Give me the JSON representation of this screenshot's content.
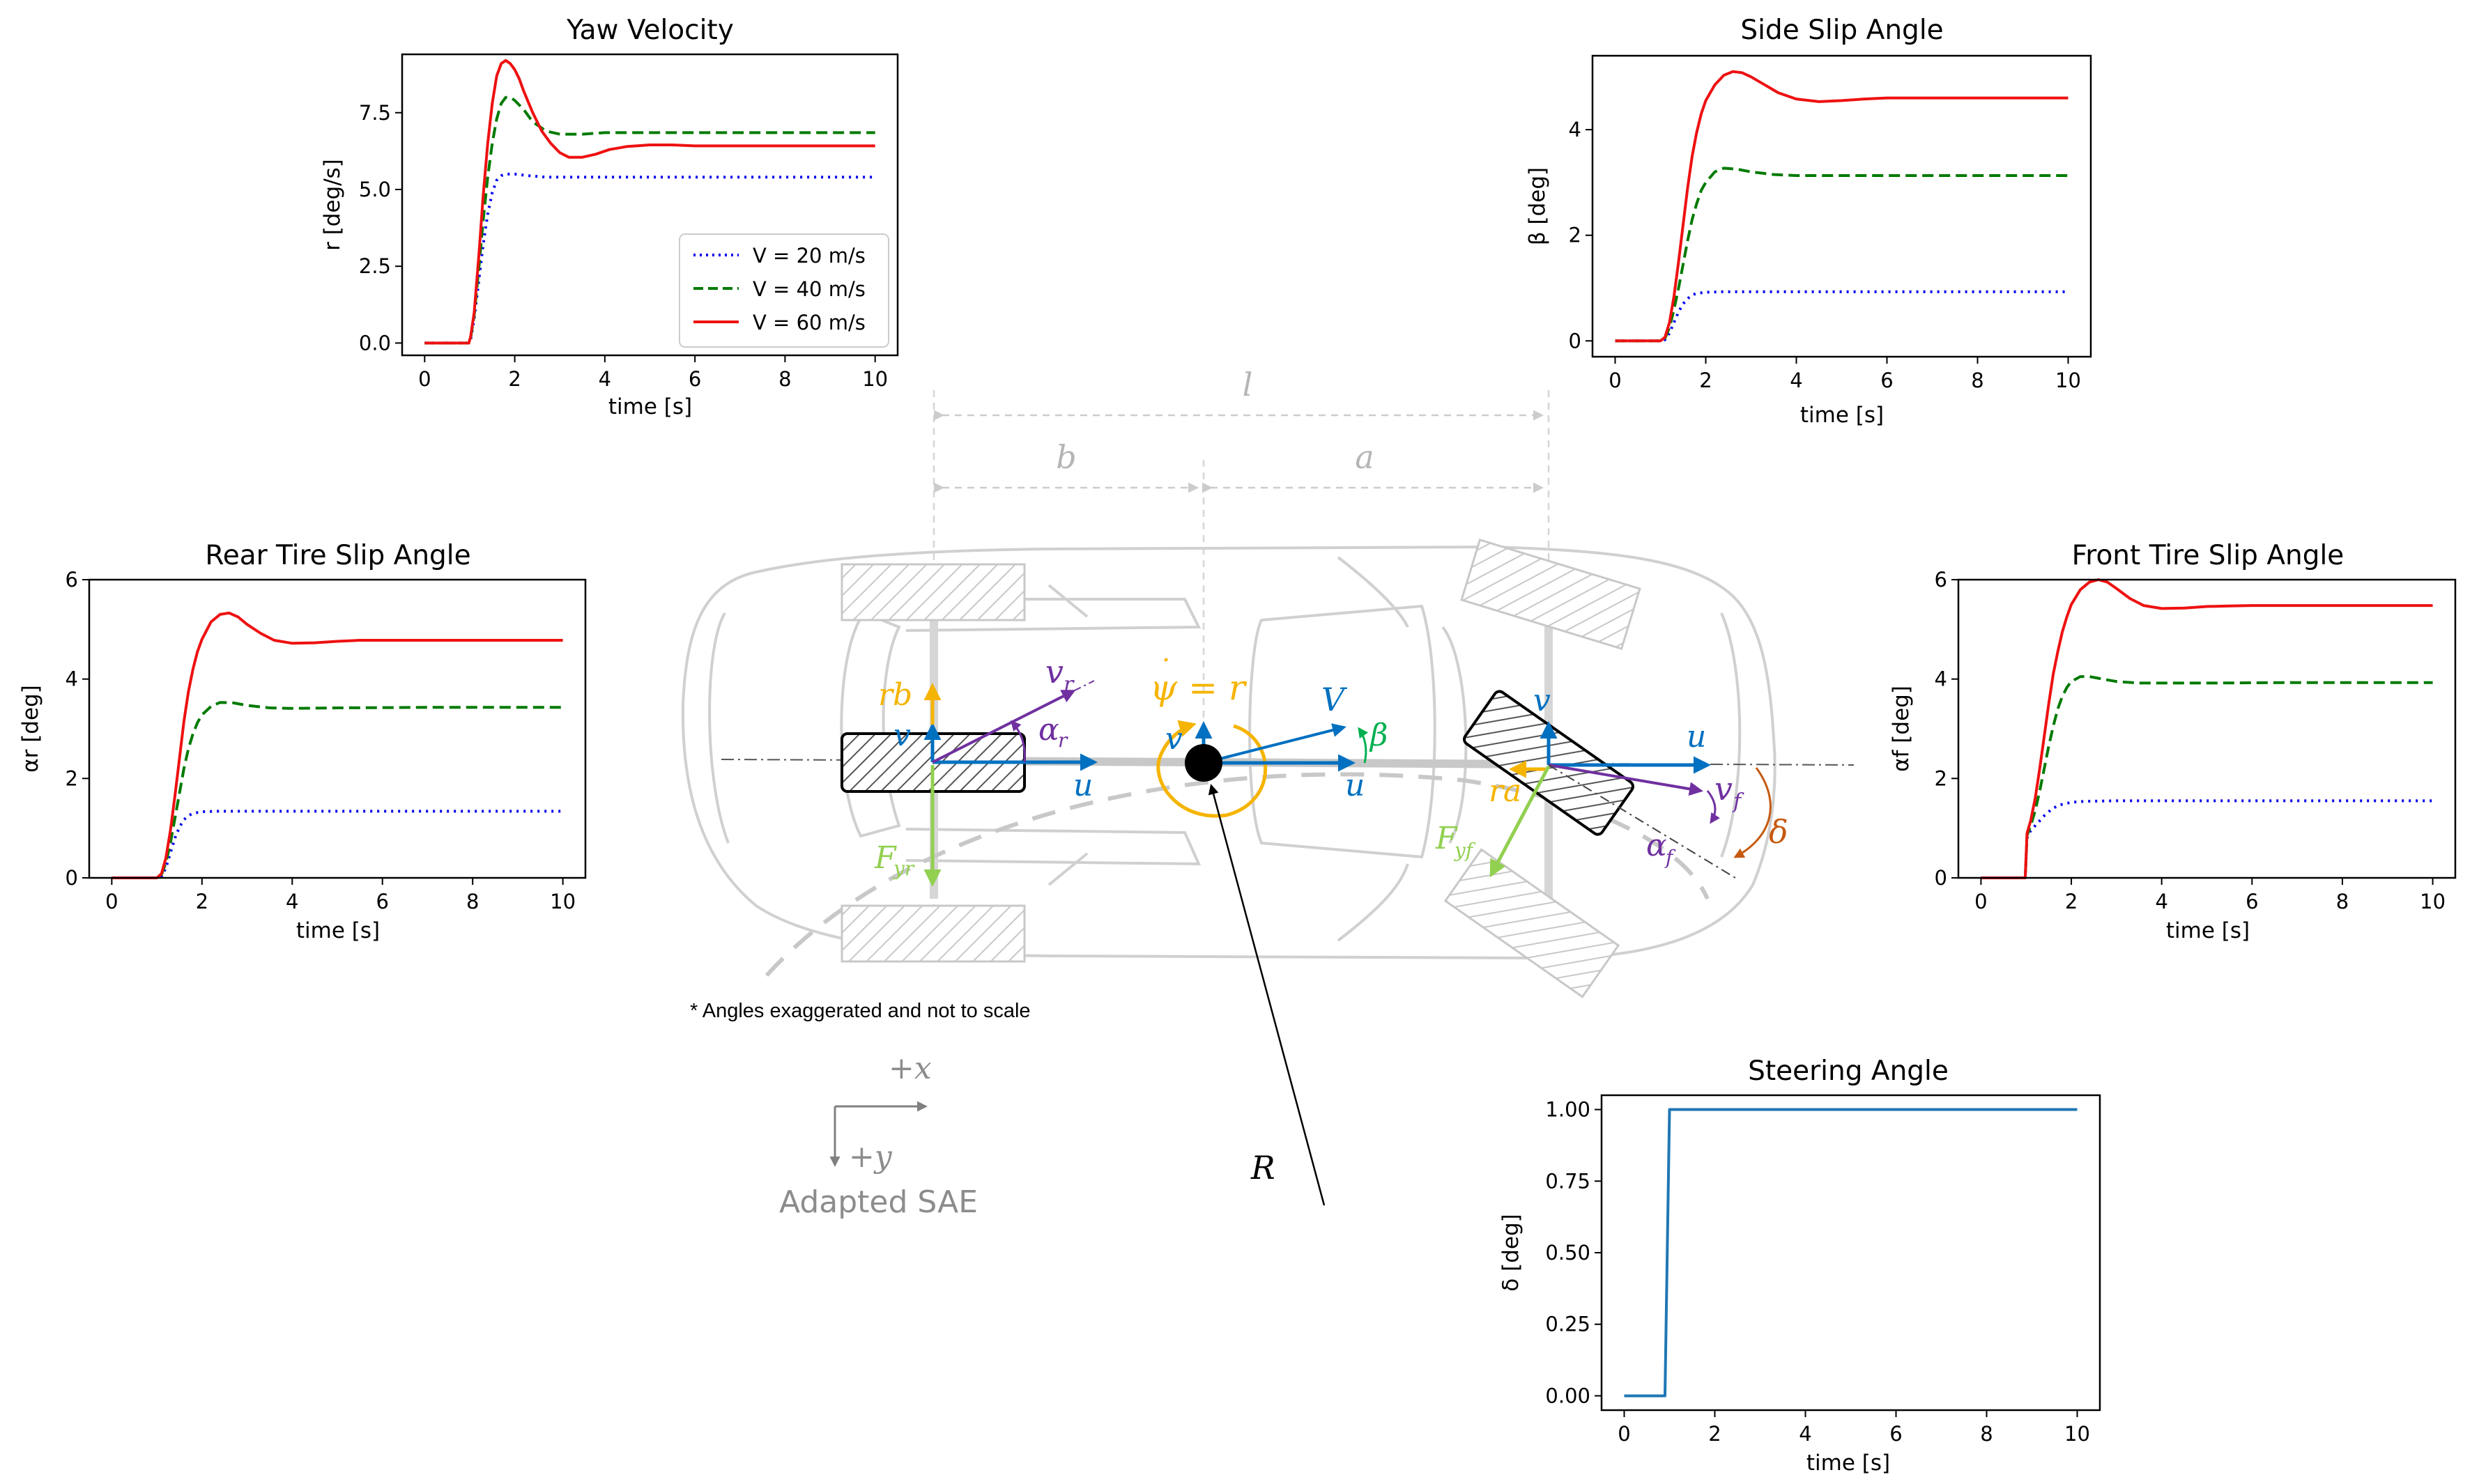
{
  "charts": {
    "yaw": {
      "title": "Yaw Velocity",
      "xlabel": "time [s]",
      "ylabel": "r [deg/s]",
      "xticks": [
        "0",
        "2",
        "4",
        "6",
        "8",
        "10"
      ],
      "yticks": [
        "0.0",
        "2.5",
        "5.0",
        "7.5"
      ]
    },
    "side": {
      "title": "Side Slip Angle",
      "xlabel": "time [s]",
      "ylabel": "β [deg]",
      "xticks": [
        "0",
        "2",
        "4",
        "6",
        "8",
        "10"
      ],
      "yticks": [
        "0",
        "2",
        "4"
      ]
    },
    "rear": {
      "title": "Rear Tire Slip Angle",
      "xlabel": "time [s]",
      "ylabel": "αr [deg]",
      "xticks": [
        "0",
        "2",
        "4",
        "6",
        "8",
        "10"
      ],
      "yticks": [
        "0",
        "2",
        "4",
        "6"
      ]
    },
    "front": {
      "title": "Front Tire Slip Angle",
      "xlabel": "time [s]",
      "ylabel": "αf [deg]",
      "xticks": [
        "0",
        "2",
        "4",
        "6",
        "8",
        "10"
      ],
      "yticks": [
        "0",
        "2",
        "4",
        "6"
      ]
    },
    "steer": {
      "title": "Steering Angle",
      "xlabel": "time [s]",
      "ylabel": "δ [deg]",
      "xticks": [
        "0",
        "2",
        "4",
        "6",
        "8",
        "10"
      ],
      "yticks": [
        "0.00",
        "0.25",
        "0.50",
        "0.75",
        "1.00"
      ]
    }
  },
  "legend": {
    "entries": [
      "V = 20 m/s",
      "V = 40 m/s",
      "V = 60 m/s"
    ]
  },
  "chart_data": [
    {
      "type": "line",
      "title": "Yaw Velocity",
      "xlabel": "time [s]",
      "ylabel": "r [deg/s]",
      "xlim": [
        -0.5,
        10.5
      ],
      "ylim": [
        -0.4,
        9.4
      ],
      "legend": "lower-right",
      "series": [
        {
          "name": "V = 20 m/s",
          "color": "#0000ee",
          "style": "dotted",
          "x": [
            0,
            0.98,
            1.02,
            1.1,
            1.2,
            1.3,
            1.4,
            1.5,
            1.6,
            1.7,
            1.8,
            2.0,
            2.3,
            2.7,
            3.5,
            5,
            7,
            10
          ],
          "y": [
            0,
            0,
            0.1,
            0.8,
            2.0,
            3.2,
            4.2,
            4.9,
            5.3,
            5.45,
            5.5,
            5.5,
            5.45,
            5.4,
            5.4,
            5.4,
            5.4,
            5.4
          ]
        },
        {
          "name": "V = 40 m/s",
          "color": "#007a00",
          "style": "dashed",
          "x": [
            0,
            0.98,
            1.02,
            1.1,
            1.2,
            1.3,
            1.4,
            1.5,
            1.6,
            1.7,
            1.8,
            1.9,
            2.0,
            2.2,
            2.4,
            2.7,
            3.0,
            3.5,
            4.0,
            5,
            7,
            10
          ],
          "y": [
            0,
            0,
            0.15,
            0.9,
            2.4,
            4.0,
            5.4,
            6.5,
            7.3,
            7.8,
            8.0,
            8.0,
            7.9,
            7.6,
            7.2,
            6.9,
            6.8,
            6.8,
            6.85,
            6.85,
            6.85,
            6.85
          ]
        },
        {
          "name": "V = 60 m/s",
          "color": "#ee1111",
          "style": "solid",
          "x": [
            0,
            0.98,
            1.02,
            1.1,
            1.2,
            1.3,
            1.4,
            1.5,
            1.6,
            1.7,
            1.8,
            1.9,
            2.0,
            2.1,
            2.2,
            2.4,
            2.6,
            2.8,
            3.0,
            3.2,
            3.5,
            3.8,
            4.1,
            4.5,
            5.0,
            5.5,
            6,
            7,
            10
          ],
          "y": [
            0,
            0,
            0.2,
            1.0,
            2.8,
            4.8,
            6.5,
            7.8,
            8.7,
            9.1,
            9.2,
            9.1,
            8.9,
            8.6,
            8.2,
            7.5,
            6.9,
            6.5,
            6.2,
            6.05,
            6.05,
            6.15,
            6.3,
            6.4,
            6.45,
            6.45,
            6.42,
            6.42,
            6.42
          ]
        }
      ]
    },
    {
      "type": "line",
      "title": "Side Slip Angle",
      "xlabel": "time [s]",
      "ylabel": "β [deg]",
      "xlim": [
        -0.5,
        10.5
      ],
      "ylim": [
        -0.3,
        5.4
      ],
      "series": [
        {
          "name": "V = 20 m/s",
          "color": "#0000ee",
          "style": "dotted",
          "x": [
            0,
            1.0,
            1.1,
            1.2,
            1.3,
            1.4,
            1.5,
            1.6,
            1.7,
            1.8,
            2.0,
            2.3,
            3,
            5,
            10
          ],
          "y": [
            0,
            0,
            0.02,
            0.15,
            0.35,
            0.55,
            0.7,
            0.8,
            0.87,
            0.9,
            0.92,
            0.93,
            0.93,
            0.93,
            0.93
          ]
        },
        {
          "name": "V = 40 m/s",
          "color": "#007a00",
          "style": "dashed",
          "x": [
            0,
            1.0,
            1.1,
            1.2,
            1.3,
            1.4,
            1.5,
            1.6,
            1.7,
            1.8,
            1.9,
            2.0,
            2.2,
            2.4,
            2.7,
            3.0,
            3.5,
            4.0,
            5,
            7,
            10
          ],
          "y": [
            0,
            0,
            0.05,
            0.25,
            0.6,
            1.0,
            1.45,
            1.9,
            2.3,
            2.6,
            2.85,
            3.0,
            3.2,
            3.27,
            3.25,
            3.2,
            3.15,
            3.13,
            3.13,
            3.13,
            3.13
          ]
        },
        {
          "name": "V = 60 m/s",
          "color": "#ee1111",
          "style": "solid",
          "x": [
            0,
            1.0,
            1.1,
            1.2,
            1.3,
            1.4,
            1.5,
            1.6,
            1.7,
            1.8,
            1.9,
            2.0,
            2.2,
            2.4,
            2.6,
            2.8,
            3.0,
            3.3,
            3.6,
            4.0,
            4.5,
            5.0,
            5.5,
            6,
            7,
            10
          ],
          "y": [
            0,
            0,
            0.07,
            0.35,
            0.85,
            1.5,
            2.2,
            2.9,
            3.5,
            3.95,
            4.3,
            4.55,
            4.85,
            5.03,
            5.1,
            5.08,
            5.0,
            4.85,
            4.7,
            4.58,
            4.53,
            4.55,
            4.58,
            4.6,
            4.6,
            4.6
          ]
        }
      ]
    },
    {
      "type": "line",
      "title": "Rear Tire Slip Angle",
      "xlabel": "time [s]",
      "ylabel": "αr [deg]",
      "xlim": [
        -0.5,
        10.5
      ],
      "ylim": [
        0,
        6
      ],
      "series": [
        {
          "name": "V = 20 m/s",
          "color": "#0000ee",
          "style": "dotted",
          "x": [
            0,
            1.0,
            1.1,
            1.2,
            1.3,
            1.4,
            1.5,
            1.6,
            1.7,
            1.8,
            2.0,
            2.3,
            3,
            5,
            10
          ],
          "y": [
            0,
            0,
            0.03,
            0.2,
            0.5,
            0.8,
            1.02,
            1.17,
            1.25,
            1.3,
            1.33,
            1.34,
            1.34,
            1.34,
            1.34
          ]
        },
        {
          "name": "V = 40 m/s",
          "color": "#007a00",
          "style": "dashed",
          "x": [
            0,
            1.0,
            1.1,
            1.2,
            1.3,
            1.4,
            1.5,
            1.6,
            1.7,
            1.8,
            1.9,
            2.0,
            2.2,
            2.4,
            2.7,
            3.0,
            3.5,
            4.0,
            5,
            7,
            10
          ],
          "y": [
            0,
            0,
            0.06,
            0.3,
            0.7,
            1.2,
            1.7,
            2.2,
            2.6,
            2.9,
            3.12,
            3.28,
            3.45,
            3.53,
            3.52,
            3.47,
            3.42,
            3.41,
            3.42,
            3.43,
            3.43
          ]
        },
        {
          "name": "V = 60 m/s",
          "color": "#ee1111",
          "style": "solid",
          "x": [
            0,
            1.0,
            1.1,
            1.2,
            1.3,
            1.4,
            1.5,
            1.6,
            1.7,
            1.8,
            1.9,
            2.0,
            2.2,
            2.4,
            2.6,
            2.8,
            3.0,
            3.3,
            3.6,
            4.0,
            4.5,
            5.0,
            5.5,
            6,
            7,
            10
          ],
          "y": [
            0,
            0,
            0.08,
            0.4,
            0.95,
            1.65,
            2.4,
            3.15,
            3.75,
            4.2,
            4.55,
            4.8,
            5.15,
            5.3,
            5.33,
            5.25,
            5.1,
            4.92,
            4.78,
            4.72,
            4.73,
            4.76,
            4.78,
            4.78,
            4.78,
            4.78
          ]
        }
      ]
    },
    {
      "type": "line",
      "title": "Front Tire Slip Angle",
      "xlabel": "time [s]",
      "ylabel": "αf [deg]",
      "xlim": [
        -0.5,
        10.5
      ],
      "ylim": [
        0,
        6
      ],
      "series": [
        {
          "name": "V = 20 m/s",
          "color": "#0000ee",
          "style": "dotted",
          "x": [
            0,
            0.98,
            1.02,
            1.1,
            1.2,
            1.3,
            1.4,
            1.5,
            1.6,
            1.7,
            1.8,
            2.0,
            2.3,
            3,
            5,
            10
          ],
          "y": [
            0,
            0,
            0.8,
            0.95,
            1.05,
            1.15,
            1.25,
            1.33,
            1.4,
            1.45,
            1.48,
            1.52,
            1.54,
            1.55,
            1.55,
            1.55
          ]
        },
        {
          "name": "V = 40 m/s",
          "color": "#007a00",
          "style": "dashed",
          "x": [
            0,
            0.98,
            1.02,
            1.1,
            1.2,
            1.3,
            1.4,
            1.5,
            1.6,
            1.7,
            1.8,
            1.9,
            2.0,
            2.2,
            2.4,
            2.7,
            3.0,
            3.5,
            4.0,
            5,
            7,
            10
          ],
          "y": [
            0,
            0,
            0.85,
            1.05,
            1.35,
            1.75,
            2.2,
            2.65,
            3.05,
            3.4,
            3.65,
            3.83,
            3.95,
            4.05,
            4.05,
            4.0,
            3.95,
            3.92,
            3.92,
            3.92,
            3.93,
            3.93
          ]
        },
        {
          "name": "V = 60 m/s",
          "color": "#ee1111",
          "style": "solid",
          "x": [
            0,
            0.98,
            1.02,
            1.1,
            1.2,
            1.3,
            1.4,
            1.5,
            1.6,
            1.7,
            1.8,
            1.9,
            2.0,
            2.2,
            2.4,
            2.6,
            2.8,
            3.0,
            3.3,
            3.6,
            4.0,
            4.5,
            5.0,
            5.5,
            6,
            7,
            10
          ],
          "y": [
            0,
            0,
            0.9,
            1.15,
            1.6,
            2.2,
            2.85,
            3.5,
            4.1,
            4.55,
            4.95,
            5.25,
            5.5,
            5.8,
            5.95,
            6.0,
            5.95,
            5.82,
            5.62,
            5.48,
            5.42,
            5.43,
            5.46,
            5.47,
            5.48,
            5.48,
            5.48
          ]
        }
      ]
    },
    {
      "type": "line",
      "title": "Steering Angle",
      "xlabel": "time [s]",
      "ylabel": "δ [deg]",
      "xlim": [
        -0.5,
        10.5
      ],
      "ylim": [
        -0.05,
        1.05
      ],
      "series": [
        {
          "name": "",
          "color": "#1f77b4",
          "style": "solid",
          "x": [
            0,
            0.9,
            1.0,
            10
          ],
          "y": [
            0,
            0,
            1.0,
            1.0
          ]
        }
      ]
    }
  ],
  "diagram": {
    "dims": {
      "l": "l",
      "b": "b",
      "a": "a"
    },
    "labels": {
      "rb": "rb",
      "vr": "v",
      "vr_sub": "r",
      "alpha_r": "α",
      "alpha_r_sub": "r",
      "v_rear": "v",
      "u_rear": "u",
      "fyr": "F",
      "fyr_sub": "yr",
      "psidot": "ψ = r",
      "psidot_dot": "˙",
      "v_cg": "v",
      "V": "V",
      "beta": "β",
      "u_cg": "u",
      "v_front": "v",
      "u_front": "u",
      "ra": "ra",
      "vf": "v",
      "vf_sub": "f",
      "alpha_f": "α",
      "alpha_f_sub": "f",
      "delta": "δ",
      "fyf": "F",
      "fyf_sub": "yf",
      "R": "R"
    },
    "note": "* Angles exaggerated and not to scale",
    "axes": {
      "x": "+x",
      "y": "+y",
      "caption": "Adapted SAE"
    },
    "colors": {
      "blue": "#0070c0",
      "gold": "#f5b400",
      "purple": "#7030a0",
      "green": "#92d050",
      "teal": "#00b050",
      "orange": "#c55a11",
      "car": "#d0d0d0"
    }
  }
}
